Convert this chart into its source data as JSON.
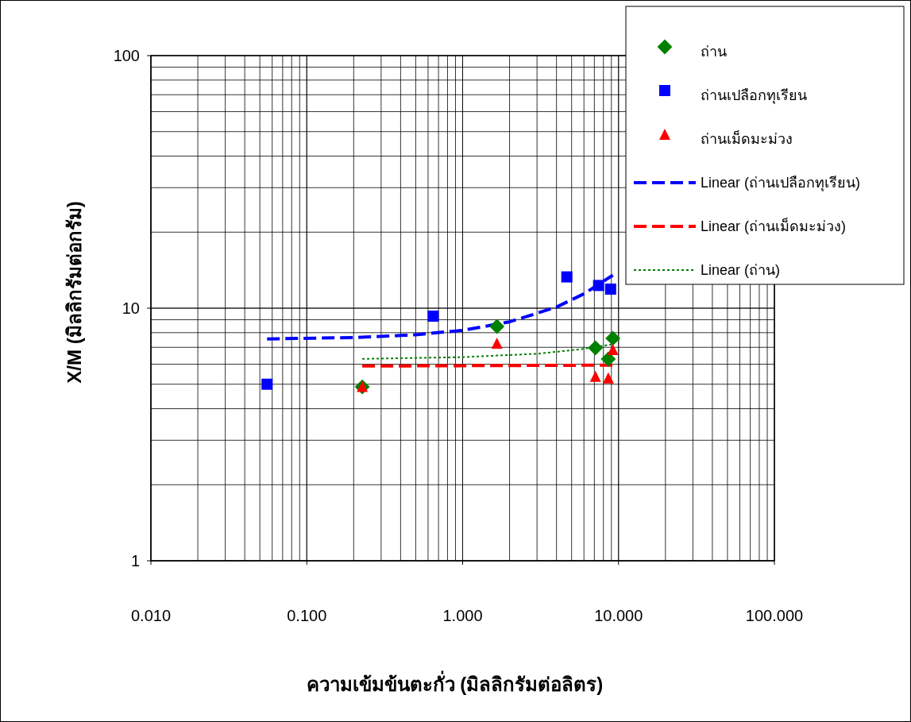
{
  "chart_data": {
    "type": "scatter",
    "xlabel": "ความเข้มข้นตะกั่ว (มิลลิกรัมต่อลิตร)",
    "ylabel": "X/M (มิลลิกรัมต่อกรัม)",
    "log": "xy",
    "xlim": [
      0.01,
      100
    ],
    "ylim": [
      1,
      100
    ],
    "xticks": [
      {
        "value": 0.01,
        "label": "0.010"
      },
      {
        "value": 0.1,
        "label": "0.100"
      },
      {
        "value": 1,
        "label": "1.000"
      },
      {
        "value": 10,
        "label": "10.000"
      },
      {
        "value": 100,
        "label": "100.000"
      }
    ],
    "yticks": [
      1,
      10,
      100
    ],
    "grid": true,
    "legend": "top right",
    "series": [
      {
        "name": "ถ่าน",
        "marker": "diamond",
        "color": "#008000",
        "x": [
          0.227,
          1.66,
          7.11,
          8.6,
          9.2
        ],
        "values": [
          4.88,
          8.47,
          6.96,
          6.29,
          7.6
        ]
      },
      {
        "name": "ถ่านเปลือกทุเรียน",
        "marker": "square",
        "color": "#0000ff",
        "x": [
          0.0556,
          0.647,
          4.66,
          7.45,
          8.9
        ],
        "values": [
          5.0,
          9.3,
          13.3,
          12.3,
          11.9
        ]
      },
      {
        "name": "ถ่านเม็ดมะม่วง",
        "marker": "triangle",
        "color": "#ff0000",
        "x": [
          0.227,
          1.66,
          7.11,
          8.6,
          9.2
        ],
        "values": [
          4.9,
          7.27,
          5.37,
          5.3,
          6.86
        ]
      },
      {
        "name": "Linear (ถ่านเปลือกทุเรียน)",
        "type": "line",
        "line_style": "dashed",
        "color": "#0000ff",
        "x": [
          0.0556,
          0.2,
          0.5,
          1,
          2,
          4,
          6,
          9.2
        ],
        "values": [
          7.56,
          7.65,
          7.85,
          8.17,
          8.83,
          10.1,
          11.4,
          13.5
        ]
      },
      {
        "name": "Linear (ถ่านเม็ดมะม่วง)",
        "type": "line",
        "line_style": "dashed",
        "color": "#ff0000",
        "x": [
          0.227,
          9.2
        ],
        "values": [
          5.9,
          5.95
        ]
      },
      {
        "name": "Linear (ถ่าน)",
        "type": "line",
        "line_style": "dotted",
        "color": "#008000",
        "x": [
          0.227,
          1,
          3,
          6,
          9.2
        ],
        "values": [
          6.3,
          6.4,
          6.6,
          6.9,
          7.2
        ]
      }
    ]
  }
}
